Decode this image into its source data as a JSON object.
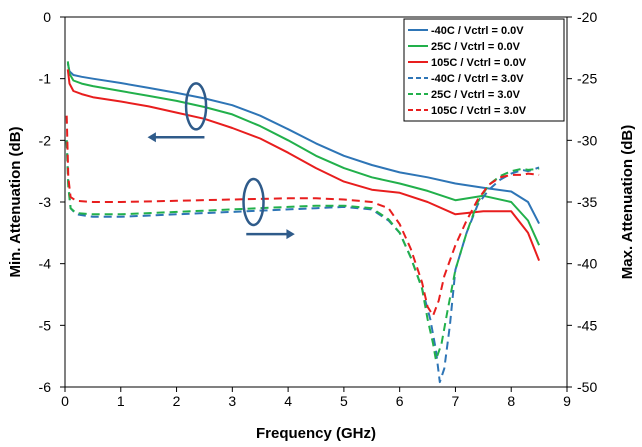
{
  "chart_data": {
    "type": "line",
    "xlabel": "Frequency  (GHz)",
    "ylabel_left": "Min. Attenuation (dB)",
    "ylabel_right": "Max. Attenuation (dB)",
    "xlim": [
      0,
      9
    ],
    "ylim_left": [
      -6,
      0
    ],
    "ylim_right": [
      -50,
      -20
    ],
    "x_ticks": [
      "0",
      "1",
      "2",
      "3",
      "4",
      "5",
      "6",
      "7",
      "8",
      "9"
    ],
    "y_ticks_left": [
      "0",
      "-1",
      "-2",
      "-3",
      "-4",
      "-5",
      "-6"
    ],
    "y_ticks_right": [
      "-20",
      "-25",
      "-30",
      "-35",
      "-40",
      "-45",
      "-50"
    ],
    "grid": "none",
    "legend_position": "top-right",
    "annotations": [
      {
        "type": "ellipse-arrow",
        "points_to": "left-axis"
      },
      {
        "type": "ellipse-arrow",
        "points_to": "right-axis"
      }
    ],
    "series": [
      {
        "name": "-40C /  Vctrl = 0.0V",
        "axis": "left",
        "color": "#2e75b6",
        "dash": "solid",
        "x": [
          0.05,
          0.08,
          0.15,
          0.3,
          0.5,
          1.0,
          1.5,
          2.0,
          2.5,
          3.0,
          3.5,
          4.0,
          4.5,
          5.0,
          5.5,
          6.0,
          6.5,
          7.0,
          7.5,
          8.0,
          8.3,
          8.5
        ],
        "y": [
          -0.75,
          -0.88,
          -0.94,
          -0.97,
          -1.0,
          -1.07,
          -1.15,
          -1.23,
          -1.32,
          -1.43,
          -1.6,
          -1.82,
          -2.05,
          -2.25,
          -2.4,
          -2.52,
          -2.6,
          -2.7,
          -2.77,
          -2.83,
          -3.0,
          -3.35
        ]
      },
      {
        "name": "25C /  Vctrl = 0.0V",
        "axis": "left",
        "color": "#22b04b",
        "dash": "solid",
        "x": [
          0.05,
          0.08,
          0.15,
          0.3,
          0.5,
          1.0,
          1.5,
          2.0,
          2.5,
          3.0,
          3.5,
          4.0,
          4.5,
          5.0,
          5.5,
          6.0,
          6.5,
          7.0,
          7.5,
          8.0,
          8.3,
          8.5
        ],
        "y": [
          -0.72,
          -0.92,
          -1.03,
          -1.08,
          -1.12,
          -1.2,
          -1.28,
          -1.36,
          -1.46,
          -1.58,
          -1.77,
          -2.0,
          -2.25,
          -2.45,
          -2.6,
          -2.7,
          -2.82,
          -2.97,
          -2.9,
          -3.0,
          -3.3,
          -3.7
        ]
      },
      {
        "name": "105C /  Vctrl = 0.0V",
        "axis": "left",
        "color": "#e81e1e",
        "dash": "solid",
        "x": [
          0.05,
          0.08,
          0.15,
          0.3,
          0.5,
          1.0,
          1.5,
          2.0,
          2.5,
          3.0,
          3.5,
          4.0,
          4.5,
          5.0,
          5.5,
          6.0,
          6.5,
          7.0,
          7.5,
          8.0,
          8.3,
          8.5
        ],
        "y": [
          -0.85,
          -1.08,
          -1.2,
          -1.25,
          -1.3,
          -1.37,
          -1.45,
          -1.55,
          -1.65,
          -1.8,
          -1.97,
          -2.2,
          -2.45,
          -2.67,
          -2.8,
          -2.85,
          -3.0,
          -3.2,
          -3.15,
          -3.15,
          -3.5,
          -3.95
        ]
      },
      {
        "name": "-40C /  Vctrl = 3.0V",
        "axis": "right",
        "color": "#2e75b6",
        "dash": "dashed",
        "x": [
          0.03,
          0.06,
          0.1,
          0.2,
          0.5,
          1.0,
          2.0,
          3.0,
          4.0,
          4.5,
          5.0,
          5.5,
          5.8,
          6.0,
          6.2,
          6.4,
          6.55,
          6.65,
          6.72,
          6.8,
          6.9,
          7.0,
          7.2,
          7.4,
          7.6,
          7.8,
          8.0,
          8.2,
          8.3,
          8.5
        ],
        "y": [
          -30,
          -33.5,
          -35.5,
          -36.0,
          -36.2,
          -36.2,
          -36.0,
          -35.8,
          -35.6,
          -35.5,
          -35.4,
          -35.6,
          -36.5,
          -37.5,
          -39.5,
          -42,
          -44.5,
          -47,
          -49.6,
          -48.5,
          -45,
          -40.5,
          -37.5,
          -35.2,
          -34,
          -33.2,
          -32.7,
          -32.4,
          -32.5,
          -32.2
        ]
      },
      {
        "name": "25C /  Vctrl = 3.0V",
        "axis": "right",
        "color": "#22b04b",
        "dash": "dashed",
        "x": [
          0.03,
          0.06,
          0.1,
          0.2,
          0.5,
          1.0,
          2.0,
          3.0,
          4.0,
          4.5,
          5.0,
          5.5,
          5.8,
          6.0,
          6.2,
          6.4,
          6.5,
          6.6,
          6.65,
          6.75,
          6.85,
          7.0,
          7.2,
          7.4,
          7.6,
          7.8,
          8.0,
          8.2,
          8.3,
          8.5
        ],
        "y": [
          -30,
          -33.8,
          -35.5,
          -35.9,
          -36.0,
          -36.0,
          -35.8,
          -35.6,
          -35.4,
          -35.3,
          -35.3,
          -35.5,
          -36.4,
          -37.5,
          -39.5,
          -42.0,
          -44.5,
          -46.5,
          -47.8,
          -46.5,
          -44.0,
          -40.5,
          -37.5,
          -35.0,
          -33.6,
          -32.9,
          -32.5,
          -32.3,
          -32.4,
          -32.3
        ]
      },
      {
        "name": "105C /  Vctrl = 3.0V",
        "axis": "right",
        "color": "#e81e1e",
        "dash": "dashed",
        "x": [
          0.03,
          0.06,
          0.1,
          0.2,
          0.5,
          1.0,
          2.0,
          3.0,
          4.0,
          4.5,
          5.0,
          5.5,
          5.8,
          6.0,
          6.2,
          6.4,
          6.5,
          6.6,
          6.7,
          6.8,
          7.0,
          7.2,
          7.4,
          7.6,
          7.8,
          8.0,
          8.2,
          8.3,
          8.5
        ],
        "y": [
          -28,
          -33.0,
          -34.6,
          -34.9,
          -35.0,
          -35.0,
          -34.9,
          -34.8,
          -34.7,
          -34.7,
          -34.8,
          -35.0,
          -35.5,
          -36.8,
          -38.8,
          -41.5,
          -43.5,
          -44.2,
          -43.0,
          -41.0,
          -38.5,
          -36.5,
          -34.8,
          -33.6,
          -33.0,
          -32.8,
          -32.8,
          -32.7,
          -32.8
        ]
      }
    ]
  }
}
